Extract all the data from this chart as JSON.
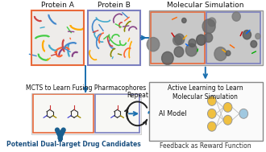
{
  "title": "",
  "background_color": "#ffffff",
  "protein_a_label": "Protein A",
  "protein_b_label": "Protein B",
  "mol_sim_label": "Molecular Simulation",
  "mcts_label": "MCTS to Learn Fusing Pharmacophores",
  "active_learning_label": "Active Learning to Learn\nMolecular Simulation",
  "ai_model_label": "AI Model",
  "repeat_label": "Repeat",
  "feedback_label": "Feedback as Reward Function",
  "drug_candidates_label": "Potential Dual-Target Drug Candidates",
  "arrow_color": "#1a6faf",
  "protein_a_border": "#e8693a",
  "protein_b_border": "#7b7fbf",
  "mol_sim_border_left": "#e8693a",
  "mol_sim_border_right": "#7b7fbf",
  "mcts_border_left": "#e8693a",
  "mcts_border_right": "#7b7fbf",
  "active_learning_border": "#888888",
  "node_color_yellow": "#f0c040",
  "node_color_blue": "#a0c8e0",
  "node_color_stroke": "#aaaaaa"
}
